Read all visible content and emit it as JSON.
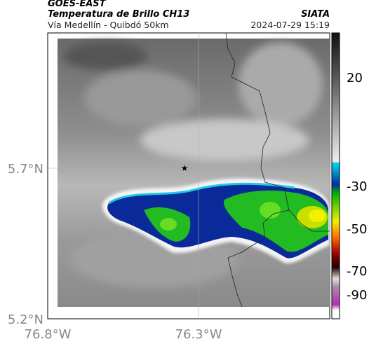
{
  "header": {
    "satellite": "GOES-EAST",
    "product": "Temperatura de Brillo CH13",
    "org": "SIATA",
    "region": "Vía Medellín - Quibdó 50km",
    "datetime": "2024-07-29 15:19"
  },
  "map": {
    "lat_ticks": [
      "5.7°N",
      "5.2°N"
    ],
    "lon_ticks": [
      "76.8°W",
      "76.3°W"
    ]
  },
  "colorbar": {
    "ticks": [
      "20",
      "-30",
      "-50",
      "-70",
      "-90"
    ]
  }
}
